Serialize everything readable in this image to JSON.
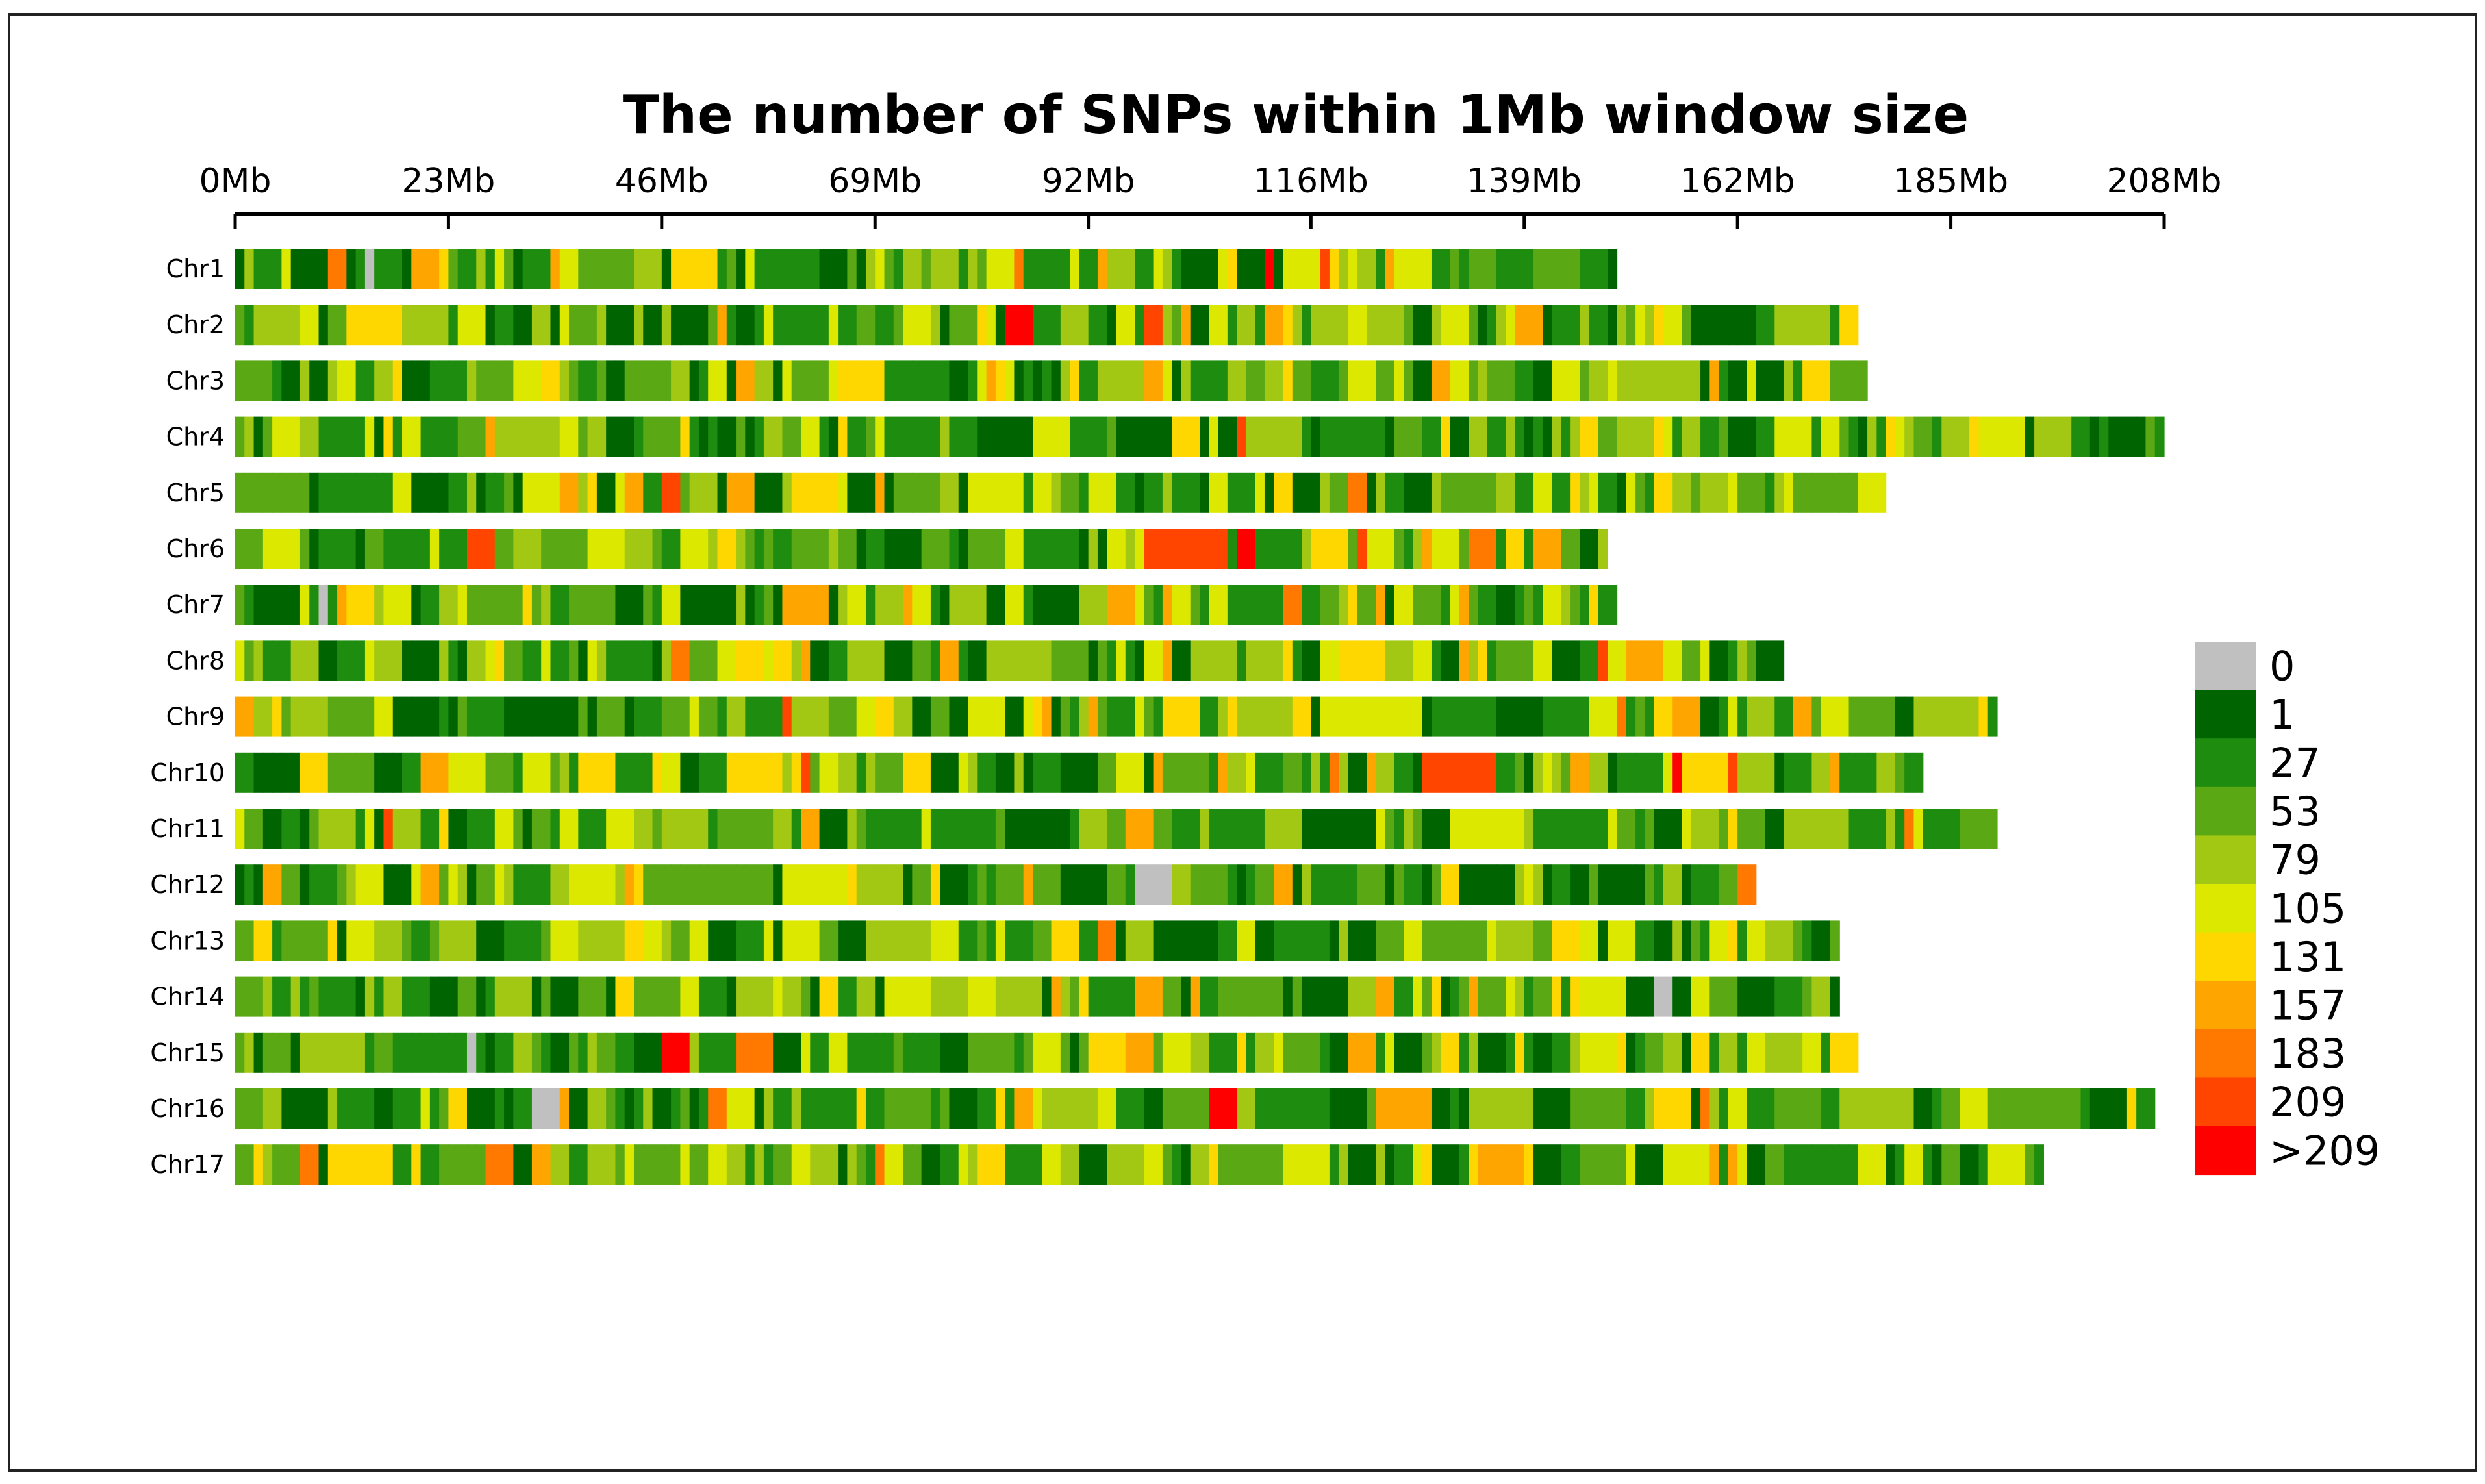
{
  "chart_data": {
    "type": "heatmap",
    "title": "The number of SNPs within 1Mb window size",
    "xlabel": "",
    "ylabel": "",
    "x_unit": "Mb",
    "xlim": [
      0,
      208
    ],
    "x_ticks": [
      "0Mb",
      "23Mb",
      "46Mb",
      "69Mb",
      "92Mb",
      "116Mb",
      "139Mb",
      "162Mb",
      "185Mb",
      "208Mb"
    ],
    "x_tick_values": [
      0,
      23,
      46,
      69,
      92,
      116,
      139,
      162,
      185,
      208
    ],
    "window_size_mb": 1,
    "chromosomes": [
      {
        "name": "Chr1",
        "length_mb": 149
      },
      {
        "name": "Chr2",
        "length_mb": 175
      },
      {
        "name": "Chr3",
        "length_mb": 176
      },
      {
        "name": "Chr4",
        "length_mb": 208
      },
      {
        "name": "Chr5",
        "length_mb": 178
      },
      {
        "name": "Chr6",
        "length_mb": 148
      },
      {
        "name": "Chr7",
        "length_mb": 149
      },
      {
        "name": "Chr8",
        "length_mb": 167
      },
      {
        "name": "Chr9",
        "length_mb": 190
      },
      {
        "name": "Chr10",
        "length_mb": 182
      },
      {
        "name": "Chr11",
        "length_mb": 190
      },
      {
        "name": "Chr12",
        "length_mb": 164
      },
      {
        "name": "Chr13",
        "length_mb": 173
      },
      {
        "name": "Chr14",
        "length_mb": 173
      },
      {
        "name": "Chr15",
        "length_mb": 175
      },
      {
        "name": "Chr16",
        "length_mb": 207
      },
      {
        "name": "Chr17",
        "length_mb": 195
      }
    ],
    "legend": {
      "placement": "right",
      "bins": [
        {
          "label": "0",
          "color": "#c0c0c0"
        },
        {
          "label": "1",
          "color": "#006400"
        },
        {
          "label": "27",
          "color": "#1e8c0e"
        },
        {
          "label": "53",
          "color": "#5aa814"
        },
        {
          "label": "79",
          "color": "#a3c814"
        },
        {
          "label": "105",
          "color": "#dde800"
        },
        {
          "label": "131",
          "color": "#ffd700"
        },
        {
          "label": "157",
          "color": "#ffa500"
        },
        {
          "label": "183",
          "color": "#ff7800"
        },
        {
          "label": "209",
          "color": "#ff4500"
        },
        {
          "label": ">209",
          "color": "#ff0000"
        }
      ]
    },
    "grid": false
  }
}
